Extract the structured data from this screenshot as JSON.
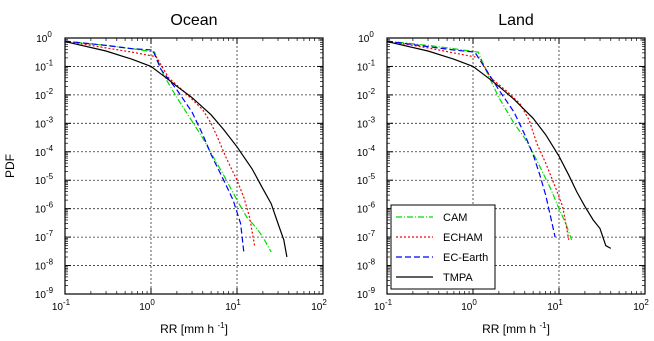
{
  "chart_data": [
    {
      "type": "line",
      "title": "Ocean",
      "xlabel": "RR [mm h",
      "xlabel_sup": "-1",
      "xlabel_end": "]",
      "ylabel": "PDF",
      "x_scale": "log",
      "y_scale": "log",
      "xlim": [
        0.1,
        100
      ],
      "ylim": [
        1e-09,
        1
      ],
      "grid": "dashed at decades 1 and 10 (x) and every decade (y)",
      "x_ticks": [
        {
          "base": "10",
          "exp": "-1"
        },
        {
          "base": "10",
          "exp": "0"
        },
        {
          "base": "10",
          "exp": "1"
        },
        {
          "base": "10",
          "exp": "2"
        }
      ],
      "y_ticks": [
        {
          "base": "10",
          "exp": "-9"
        },
        {
          "base": "10",
          "exp": "-8"
        },
        {
          "base": "10",
          "exp": "-7"
        },
        {
          "base": "10",
          "exp": "-6"
        },
        {
          "base": "10",
          "exp": "-5"
        },
        {
          "base": "10",
          "exp": "-4"
        },
        {
          "base": "10",
          "exp": "-3"
        },
        {
          "base": "10",
          "exp": "-2"
        },
        {
          "base": "10",
          "exp": "-1"
        },
        {
          "base": "10",
          "exp": "0"
        }
      ],
      "series": [
        {
          "name": "CAM",
          "color": "#00dd00",
          "dash": "6,2,1,2",
          "points": [
            [
              0.1,
              0.78
            ],
            [
              0.3,
              0.55
            ],
            [
              0.6,
              0.42
            ],
            [
              1.1,
              0.32
            ],
            [
              1.4,
              0.05
            ],
            [
              2.0,
              0.008
            ],
            [
              3.0,
              0.0012
            ],
            [
              4.0,
              0.0003
            ],
            [
              5.0,
              9e-05
            ],
            [
              7.0,
              1.5e-05
            ],
            [
              10.0,
              2e-06
            ],
            [
              13.0,
              5e-07
            ],
            [
              17.0,
              2e-07
            ],
            [
              20.0,
              1e-07
            ],
            [
              25.0,
              3e-08
            ]
          ]
        },
        {
          "name": "ECHAM",
          "color": "#ff0000",
          "dash": "2,2",
          "points": [
            [
              0.1,
              0.78
            ],
            [
              0.3,
              0.45
            ],
            [
              0.6,
              0.32
            ],
            [
              1.15,
              0.22
            ],
            [
              1.6,
              0.04
            ],
            [
              2.5,
              0.012
            ],
            [
              4.0,
              0.003
            ],
            [
              5.0,
              0.001
            ],
            [
              6.0,
              0.0003
            ],
            [
              7.5,
              6e-05
            ],
            [
              10.0,
              1e-05
            ],
            [
              12.0,
              2.5e-06
            ],
            [
              14.0,
              5e-07
            ],
            [
              16.0,
              5e-08
            ]
          ]
        },
        {
          "name": "EC-Earth",
          "color": "#0000ff",
          "dash": "6,3",
          "points": [
            [
              0.1,
              0.78
            ],
            [
              0.3,
              0.55
            ],
            [
              0.6,
              0.42
            ],
            [
              1.05,
              0.38
            ],
            [
              1.3,
              0.08
            ],
            [
              2.0,
              0.015
            ],
            [
              3.0,
              0.0025
            ],
            [
              4.0,
              0.0004
            ],
            [
              5.0,
              8e-05
            ],
            [
              7.0,
              1e-05
            ],
            [
              9.0,
              2e-06
            ],
            [
              11.0,
              3e-07
            ],
            [
              12.0,
              3e-08
            ]
          ]
        },
        {
          "name": "TMPA",
          "color": "#000000",
          "dash": "",
          "points": [
            [
              0.1,
              0.75
            ],
            [
              0.3,
              0.35
            ],
            [
              0.6,
              0.18
            ],
            [
              1.0,
              0.1
            ],
            [
              1.5,
              0.04
            ],
            [
              2.0,
              0.02
            ],
            [
              3.0,
              0.008
            ],
            [
              5.0,
              0.002
            ],
            [
              7.0,
              0.0006
            ],
            [
              10.0,
              0.00015
            ],
            [
              15.0,
              2.5e-05
            ],
            [
              20.0,
              5e-06
            ],
            [
              25.0,
              1.5e-06
            ],
            [
              30.0,
              3e-07
            ],
            [
              35.0,
              8e-08
            ],
            [
              38.0,
              2e-08
            ]
          ]
        }
      ]
    },
    {
      "type": "line",
      "title": "Land",
      "xlabel": "RR [mm h",
      "xlabel_sup": "-1",
      "xlabel_end": "]",
      "x_scale": "log",
      "y_scale": "log",
      "xlim": [
        0.1,
        100
      ],
      "ylim": [
        1e-09,
        1
      ],
      "x_ticks": [
        {
          "base": "10",
          "exp": "-1"
        },
        {
          "base": "10",
          "exp": "0"
        },
        {
          "base": "10",
          "exp": "1"
        },
        {
          "base": "10",
          "exp": "2"
        }
      ],
      "y_ticks": [
        {
          "base": "10",
          "exp": "-9"
        },
        {
          "base": "10",
          "exp": "-8"
        },
        {
          "base": "10",
          "exp": "-7"
        },
        {
          "base": "10",
          "exp": "-6"
        },
        {
          "base": "10",
          "exp": "-5"
        },
        {
          "base": "10",
          "exp": "-4"
        },
        {
          "base": "10",
          "exp": "-3"
        },
        {
          "base": "10",
          "exp": "-2"
        },
        {
          "base": "10",
          "exp": "-1"
        },
        {
          "base": "10",
          "exp": "0"
        }
      ],
      "legend": {
        "placement": "bottom-left",
        "entries": [
          "CAM",
          "ECHAM",
          "EC-Earth",
          "TMPA"
        ]
      },
      "series": [
        {
          "name": "CAM",
          "color": "#00dd00",
          "dash": "6,2,1,2",
          "points": [
            [
              0.1,
              0.78
            ],
            [
              0.3,
              0.55
            ],
            [
              0.6,
              0.42
            ],
            [
              1.15,
              0.32
            ],
            [
              1.5,
              0.05
            ],
            [
              2.0,
              0.008
            ],
            [
              3.0,
              0.001
            ],
            [
              4.0,
              0.0003
            ],
            [
              5.0,
              9e-05
            ],
            [
              6.0,
              3e-05
            ],
            [
              8.0,
              5e-06
            ],
            [
              10.0,
              1e-06
            ],
            [
              12.0,
              3e-07
            ],
            [
              14.0,
              8e-08
            ]
          ]
        },
        {
          "name": "ECHAM",
          "color": "#ff0000",
          "dash": "2,2",
          "points": [
            [
              0.1,
              0.78
            ],
            [
              0.3,
              0.45
            ],
            [
              0.6,
              0.3
            ],
            [
              1.2,
              0.2
            ],
            [
              1.6,
              0.04
            ],
            [
              2.5,
              0.013
            ],
            [
              3.5,
              0.005
            ],
            [
              4.5,
              0.0013
            ],
            [
              5.5,
              0.0002
            ],
            [
              7.0,
              4e-05
            ],
            [
              9.0,
              6e-06
            ],
            [
              11.0,
              1.2e-06
            ],
            [
              12.0,
              3e-07
            ],
            [
              13.0,
              8e-08
            ]
          ]
        },
        {
          "name": "EC-Earth",
          "color": "#0000ff",
          "dash": "6,3",
          "points": [
            [
              0.1,
              0.78
            ],
            [
              0.3,
              0.5
            ],
            [
              0.6,
              0.38
            ],
            [
              1.05,
              0.32
            ],
            [
              1.5,
              0.06
            ],
            [
              2.0,
              0.015
            ],
            [
              3.0,
              0.0025
            ],
            [
              4.0,
              0.0004
            ],
            [
              5.0,
              8e-05
            ],
            [
              6.0,
              1.5e-05
            ],
            [
              7.0,
              3e-06
            ],
            [
              8.0,
              5e-07
            ],
            [
              9.0,
              1e-07
            ]
          ]
        },
        {
          "name": "TMPA",
          "color": "#000000",
          "dash": "",
          "points": [
            [
              0.1,
              0.75
            ],
            [
              0.3,
              0.35
            ],
            [
              0.6,
              0.18
            ],
            [
              1.0,
              0.1
            ],
            [
              1.5,
              0.04
            ],
            [
              2.0,
              0.02
            ],
            [
              3.0,
              0.007
            ],
            [
              5.0,
              0.0015
            ],
            [
              7.0,
              0.0004
            ],
            [
              10.0,
              7e-05
            ],
            [
              13.0,
              1.5e-05
            ],
            [
              16.0,
              4e-06
            ],
            [
              20.0,
              1.2e-06
            ],
            [
              25.0,
              4e-07
            ],
            [
              30.0,
              2e-07
            ],
            [
              35.0,
              5e-08
            ],
            [
              40.0,
              4e-08
            ]
          ]
        }
      ]
    }
  ]
}
